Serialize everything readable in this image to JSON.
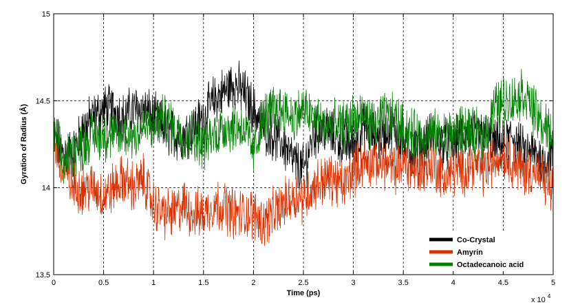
{
  "chart_data": {
    "type": "line",
    "title": "",
    "xlabel": "Time (ps)",
    "ylabel": "Gyration of Radius (Å)",
    "x_multiplier_label": "x 10",
    "x_multiplier_exponent": "4",
    "xlim": [
      0,
      5
    ],
    "ylim": [
      13.5,
      15
    ],
    "x_ticks": [
      "0",
      "0.5",
      "1",
      "1.5",
      "2",
      "2.5",
      "3",
      "3.5",
      "4",
      "4.5",
      "5"
    ],
    "y_ticks": [
      "13.5",
      "14",
      "14.5",
      "15"
    ],
    "grid": true,
    "legend_position": "bottom-right",
    "series": [
      {
        "name": "Co-Crystal",
        "color": "#000000",
        "x": [
          0,
          0.1,
          0.2,
          0.3,
          0.4,
          0.5,
          0.6,
          0.7,
          0.8,
          0.9,
          1.0,
          1.1,
          1.2,
          1.3,
          1.4,
          1.5,
          1.6,
          1.7,
          1.8,
          1.9,
          2.0,
          2.1,
          2.2,
          2.3,
          2.4,
          2.5,
          2.6,
          2.7,
          2.8,
          2.9,
          3.0,
          3.1,
          3.2,
          3.3,
          3.4,
          3.5,
          3.6,
          3.7,
          3.8,
          3.9,
          4.0,
          4.1,
          4.2,
          4.3,
          4.4,
          4.5,
          4.6,
          4.7,
          4.8,
          4.9,
          5.0
        ],
        "y": [
          14.3,
          14.2,
          14.2,
          14.35,
          14.4,
          14.45,
          14.45,
          14.4,
          14.45,
          14.45,
          14.4,
          14.35,
          14.3,
          14.3,
          14.35,
          14.4,
          14.5,
          14.55,
          14.6,
          14.55,
          14.45,
          14.35,
          14.3,
          14.25,
          14.15,
          14.1,
          14.3,
          14.35,
          14.3,
          14.25,
          14.25,
          14.35,
          14.3,
          14.3,
          14.35,
          14.25,
          14.2,
          14.25,
          14.3,
          14.25,
          14.25,
          14.3,
          14.3,
          14.3,
          14.25,
          14.25,
          14.3,
          14.2,
          14.2,
          14.15,
          14.2
        ]
      },
      {
        "name": "Amyrin",
        "color": "#d83000",
        "x": [
          0,
          0.1,
          0.2,
          0.3,
          0.4,
          0.5,
          0.6,
          0.7,
          0.8,
          0.9,
          1.0,
          1.1,
          1.2,
          1.3,
          1.4,
          1.5,
          1.6,
          1.7,
          1.8,
          1.9,
          2.0,
          2.1,
          2.2,
          2.3,
          2.4,
          2.5,
          2.6,
          2.7,
          2.8,
          2.9,
          3.0,
          3.1,
          3.2,
          3.3,
          3.4,
          3.5,
          3.6,
          3.7,
          3.8,
          3.9,
          4.0,
          4.1,
          4.2,
          4.3,
          4.4,
          4.5,
          4.6,
          4.7,
          4.8,
          4.9,
          5.0
        ],
        "y": [
          14.25,
          14.1,
          14.0,
          14.0,
          14.0,
          13.95,
          14.0,
          14.05,
          14.0,
          14.05,
          13.9,
          13.85,
          13.85,
          13.9,
          13.85,
          13.85,
          13.9,
          13.9,
          13.85,
          13.85,
          13.85,
          13.8,
          13.85,
          13.9,
          13.95,
          13.95,
          14.0,
          14.05,
          14.05,
          14.0,
          14.1,
          14.15,
          14.15,
          14.15,
          14.1,
          14.15,
          14.1,
          14.1,
          14.15,
          14.05,
          14.1,
          14.1,
          14.15,
          14.1,
          14.15,
          14.2,
          14.15,
          14.1,
          14.1,
          14.05,
          14.0
        ]
      },
      {
        "name": "Octadecanoic acid",
        "color": "#008000",
        "x": [
          0,
          0.1,
          0.2,
          0.3,
          0.4,
          0.5,
          0.6,
          0.7,
          0.8,
          0.9,
          1.0,
          1.1,
          1.2,
          1.3,
          1.4,
          1.5,
          1.6,
          1.7,
          1.8,
          1.9,
          2.0,
          2.1,
          2.2,
          2.3,
          2.4,
          2.5,
          2.6,
          2.7,
          2.8,
          2.9,
          3.0,
          3.1,
          3.2,
          3.3,
          3.4,
          3.5,
          3.6,
          3.7,
          3.8,
          3.9,
          4.0,
          4.1,
          4.2,
          4.3,
          4.4,
          4.5,
          4.6,
          4.7,
          4.8,
          4.9,
          5.0
        ],
        "y": [
          14.3,
          14.15,
          14.2,
          14.25,
          14.3,
          14.3,
          14.3,
          14.3,
          14.3,
          14.35,
          14.35,
          14.4,
          14.35,
          14.3,
          14.3,
          14.25,
          14.3,
          14.35,
          14.35,
          14.35,
          14.2,
          14.4,
          14.45,
          14.45,
          14.4,
          14.45,
          14.4,
          14.35,
          14.35,
          14.35,
          14.4,
          14.4,
          14.35,
          14.4,
          14.4,
          14.35,
          14.3,
          14.3,
          14.3,
          14.3,
          14.3,
          14.35,
          14.3,
          14.3,
          14.45,
          14.5,
          14.5,
          14.55,
          14.45,
          14.35,
          14.3
        ]
      }
    ]
  }
}
